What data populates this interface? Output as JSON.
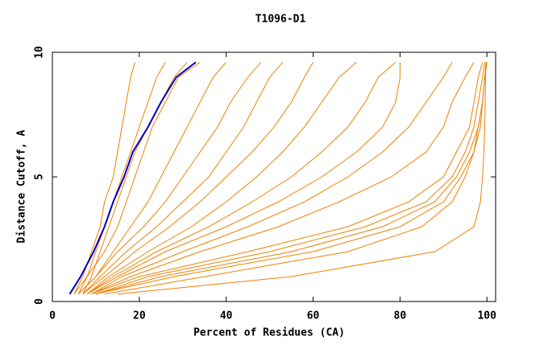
{
  "chart_data": {
    "type": "line",
    "title": "T1096-D1",
    "x_label": "Percent of Residues (CA)",
    "y_label": "Distance Cutoff, A",
    "xlim": [
      0,
      102
    ],
    "ylim": [
      0,
      10
    ],
    "xticks": [
      0,
      20,
      40,
      60,
      80,
      100
    ],
    "yticks": [
      0,
      5,
      10
    ],
    "series": [
      {
        "color": "#f08000",
        "x": [
          5,
          7,
          9,
          11,
          12,
          14,
          15,
          16,
          17,
          18,
          19
        ],
        "values": [
          0.3,
          1,
          2,
          3,
          4,
          5,
          6,
          7,
          8,
          9,
          9.6
        ]
      },
      {
        "color": "#f08000",
        "x": [
          6,
          8,
          10,
          12,
          14,
          16,
          18,
          20,
          22,
          24,
          26
        ],
        "values": [
          0.3,
          1,
          2,
          3,
          4,
          5,
          6,
          7,
          8,
          9,
          9.6
        ]
      },
      {
        "color": "#f08000",
        "x": [
          7,
          9,
          11,
          13,
          15,
          17,
          19,
          22,
          25,
          28,
          31
        ],
        "values": [
          0.3,
          1,
          2,
          3,
          4,
          5,
          6,
          7,
          8,
          9,
          9.6
        ]
      },
      {
        "color": "#f08000",
        "x": [
          5,
          8,
          12,
          15,
          17,
          19,
          21,
          23,
          26,
          29,
          34
        ],
        "values": [
          0.3,
          1,
          2,
          3,
          4,
          5,
          6,
          7,
          8,
          9,
          9.6
        ]
      },
      {
        "color": "#f08000",
        "x": [
          6,
          10,
          14,
          18,
          22,
          25,
          28,
          31,
          34,
          37,
          40
        ],
        "values": [
          0.3,
          1,
          2,
          3,
          4,
          5,
          6,
          7,
          8,
          9,
          9.6
        ]
      },
      {
        "color": "#f08000",
        "x": [
          6,
          10,
          15,
          21,
          26,
          30,
          34,
          38,
          41,
          45,
          48
        ],
        "values": [
          0.3,
          1,
          2,
          3,
          4,
          5,
          6,
          7,
          8,
          9,
          9.6
        ]
      },
      {
        "color": "#f08000",
        "x": [
          7,
          11,
          17,
          24,
          30,
          36,
          40,
          44,
          47,
          50,
          53
        ],
        "values": [
          0.3,
          1,
          2,
          3,
          4,
          5,
          6,
          7,
          8,
          9,
          9.6
        ]
      },
      {
        "color": "#f08000",
        "x": [
          7,
          12,
          19,
          27,
          34,
          40,
          46,
          51,
          55,
          58,
          60
        ],
        "values": [
          0.3,
          1,
          2,
          3,
          4,
          5,
          6,
          7,
          8,
          9,
          9.6
        ]
      },
      {
        "color": "#f08000",
        "x": [
          8,
          13,
          22,
          32,
          40,
          47,
          53,
          58,
          62,
          66,
          70
        ],
        "values": [
          0.3,
          1,
          2,
          3,
          4,
          5,
          6,
          7,
          8,
          9,
          9.6
        ]
      },
      {
        "color": "#f08000",
        "x": [
          8,
          14,
          24,
          36,
          46,
          55,
          62,
          68,
          72,
          75,
          79
        ],
        "values": [
          0.3,
          1,
          2,
          3,
          4,
          5,
          6,
          7,
          8,
          9,
          9.6
        ]
      },
      {
        "color": "#f08000",
        "x": [
          8,
          15,
          26,
          40,
          52,
          62,
          70,
          76,
          79,
          80,
          80
        ],
        "values": [
          0.3,
          1,
          2,
          3,
          4,
          5,
          6,
          7,
          8,
          9,
          9.6
        ]
      },
      {
        "color": "#f08000",
        "x": [
          9,
          16,
          30,
          45,
          58,
          68,
          76,
          82,
          86,
          90,
          92
        ],
        "values": [
          0.3,
          1,
          2,
          3,
          4,
          5,
          6,
          7,
          8,
          9,
          9.6
        ]
      },
      {
        "color": "#f08000",
        "x": [
          9,
          18,
          34,
          52,
          66,
          78,
          86,
          90,
          92,
          95,
          97
        ],
        "values": [
          0.3,
          1,
          2,
          3,
          4,
          5,
          6,
          7,
          8,
          9,
          9.6
        ]
      },
      {
        "color": "#f08000",
        "x": [
          9,
          20,
          45,
          68,
          82,
          90,
          93,
          96,
          97,
          98,
          99
        ],
        "values": [
          0.3,
          1,
          2,
          3,
          4,
          5,
          6,
          7,
          8,
          9,
          9.6
        ]
      },
      {
        "color": "#f08000",
        "x": [
          10,
          22,
          50,
          72,
          86,
          92,
          95,
          97,
          98,
          99,
          99.5
        ],
        "values": [
          0.3,
          1,
          2,
          3,
          4,
          5,
          6,
          7,
          8,
          9,
          9.6
        ]
      },
      {
        "color": "#f08000",
        "x": [
          10,
          25,
          55,
          76,
          88,
          93,
          96,
          98,
          99,
          99.5,
          99.8
        ],
        "values": [
          0.3,
          1,
          2,
          3,
          4,
          5,
          6,
          7,
          8,
          9,
          9.6
        ]
      },
      {
        "color": "#f08000",
        "x": [
          10,
          28,
          60,
          80,
          90,
          94,
          97,
          98.5,
          99,
          99.5,
          100
        ],
        "values": [
          0.3,
          1,
          2,
          3,
          4,
          5,
          6,
          7,
          8,
          9,
          9.6
        ]
      },
      {
        "color": "#f08000",
        "x": [
          12,
          35,
          68,
          85,
          92,
          95,
          97,
          98,
          99,
          99.5,
          100
        ],
        "values": [
          0.3,
          1,
          2,
          3,
          4,
          5,
          6,
          7,
          8,
          9,
          9.6
        ]
      },
      {
        "color": "#f08000",
        "x": [
          15,
          55,
          88,
          97,
          98.5,
          99,
          99.3,
          99.5,
          99.6,
          99.7,
          99.8
        ],
        "values": [
          0.3,
          1,
          2,
          3,
          4,
          5,
          6,
          7,
          8,
          9,
          9.6
        ]
      },
      {
        "color": "#0000c0",
        "x": [
          4,
          6.5,
          9.5,
          12,
          14,
          16.5,
          18.5,
          22,
          25,
          28.5,
          33
        ],
        "values": [
          0.3,
          1,
          2,
          3,
          4,
          5,
          6,
          7,
          8,
          9,
          9.6
        ]
      }
    ]
  }
}
